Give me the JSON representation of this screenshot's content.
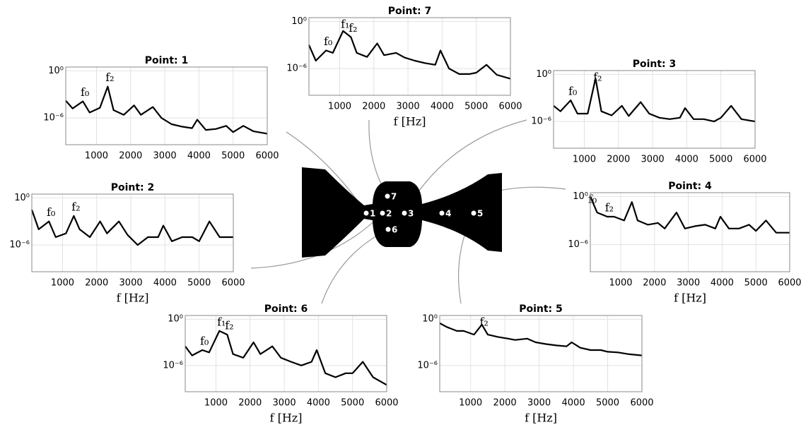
{
  "chart_data": [
    {
      "type": "line",
      "title": "Point: 1",
      "log_y": true,
      "grid": true,
      "color": "#000000",
      "x": [
        100,
        300,
        600,
        800,
        1100,
        1330,
        1500,
        1800,
        2100,
        2300,
        2650,
        2900,
        3200,
        3500,
        3800,
        3950,
        4200,
        4500,
        4800,
        5000,
        5300,
        5600,
        6000
      ],
      "values": [
        0.00016,
        1.6e-05,
        0.00013,
        5e-06,
        2e-05,
        0.01,
        1e-05,
        2.5e-06,
        4e-05,
        2.5e-06,
        2.5e-05,
        1e-06,
        1.6e-07,
        8e-08,
        5e-08,
        6e-07,
        3e-08,
        4e-08,
        1e-07,
        1.6e-08,
        1e-07,
        2e-08,
        1e-08
      ],
      "xlim": [
        100,
        6000
      ],
      "xticks": [
        1000,
        2000,
        3000,
        4000,
        5000,
        6000
      ],
      "ylim": [
        4e-10,
        3
      ],
      "yticks": [
        {
          "value": 1,
          "label": "10⁰"
        },
        {
          "value": 1e-06,
          "label": "10⁻⁶"
        }
      ],
      "annotations": [
        {
          "text": "f₀",
          "x": 600
        },
        {
          "text": "f₂",
          "x": 1330
        }
      ]
    },
    {
      "type": "line",
      "title": "Point: 7",
      "log_y": true,
      "grid": true,
      "color": "#000000",
      "xlabel": "f [Hz]",
      "x": [
        100,
        300,
        600,
        800,
        1100,
        1330,
        1500,
        1800,
        2100,
        2300,
        2650,
        2900,
        3200,
        3500,
        3800,
        3950,
        4200,
        4500,
        4800,
        5000,
        5300,
        5600,
        6000
      ],
      "values": [
        0.001,
        1e-05,
        0.0002,
        0.0001,
        0.06,
        0.01,
        0.0001,
        3e-05,
        0.0016,
        5e-05,
        0.0001,
        2.5e-05,
        1e-05,
        5e-06,
        3e-06,
        0.0002,
        1e-06,
        2e-07,
        2e-07,
        3e-07,
        3e-06,
        1.6e-07,
        5e-08
      ],
      "xlim": [
        100,
        6000
      ],
      "xticks": [
        1000,
        2000,
        3000,
        4000,
        5000,
        6000
      ],
      "ylim": [
        4e-10,
        3
      ],
      "yticks": [
        {
          "value": 1,
          "label": "10⁰"
        },
        {
          "value": 1e-06,
          "label": "10⁻⁶"
        }
      ],
      "annotations": [
        {
          "text": "f₀",
          "x": 600
        },
        {
          "text": "f₁",
          "x": 1100
        },
        {
          "text": "f₂",
          "x": 1330
        }
      ]
    },
    {
      "type": "line",
      "title": "Point: 3",
      "log_y": true,
      "grid": true,
      "color": "#000000",
      "x": [
        100,
        300,
        600,
        800,
        1100,
        1330,
        1500,
        1800,
        2100,
        2300,
        2650,
        2900,
        3200,
        3500,
        3800,
        3950,
        4200,
        4500,
        4800,
        5000,
        5300,
        5600,
        6000
      ],
      "values": [
        0.0001,
        2e-05,
        0.0005,
        1e-05,
        1e-05,
        0.3,
        2e-05,
        6e-06,
        0.0001,
        5e-06,
        0.0003,
        1e-05,
        3e-06,
        2e-06,
        3e-06,
        5e-05,
        2e-06,
        2e-06,
        1e-06,
        3e-06,
        0.0001,
        2e-06,
        1e-06
      ],
      "xlim": [
        100,
        6000
      ],
      "xticks": [
        1000,
        2000,
        3000,
        4000,
        5000,
        6000
      ],
      "ylim": [
        4e-10,
        3
      ],
      "yticks": [
        {
          "value": 1,
          "label": "10⁰"
        },
        {
          "value": 1e-06,
          "label": "10⁻⁶"
        }
      ],
      "annotations": [
        {
          "text": "f₀",
          "x": 600
        },
        {
          "text": "f₂",
          "x": 1330
        }
      ]
    },
    {
      "type": "line",
      "title": "Point: 2",
      "log_y": true,
      "grid": true,
      "color": "#000000",
      "xlabel": "f [Hz]",
      "x": [
        100,
        300,
        600,
        800,
        1100,
        1330,
        1500,
        1800,
        2100,
        2300,
        2650,
        2900,
        3200,
        3500,
        3800,
        3950,
        4200,
        4500,
        4800,
        5000,
        5300,
        5600,
        6000
      ],
      "values": [
        0.03,
        0.0001,
        0.001,
        1e-05,
        3e-05,
        0.005,
        0.0001,
        1e-05,
        0.001,
        3e-05,
        0.001,
        2e-05,
        1e-06,
        1e-05,
        1e-05,
        0.0003,
        3e-06,
        1e-05,
        1e-05,
        3e-06,
        0.001,
        1e-05,
        1e-05
      ],
      "xlim": [
        100,
        6000
      ],
      "xticks": [
        1000,
        2000,
        3000,
        4000,
        5000,
        6000
      ],
      "ylim": [
        4e-10,
        3
      ],
      "yticks": [
        {
          "value": 1,
          "label": "10⁰"
        },
        {
          "value": 1e-06,
          "label": "10⁻⁶"
        }
      ],
      "annotations": [
        {
          "text": "f₀",
          "x": 600
        },
        {
          "text": "f₂",
          "x": 1330
        }
      ]
    },
    {
      "type": "line",
      "title": "Point: 4",
      "log_y": true,
      "grid": true,
      "color": "#000000",
      "xlabel": "f [Hz]",
      "x": [
        100,
        300,
        600,
        800,
        1100,
        1330,
        1500,
        1800,
        2100,
        2300,
        2650,
        2900,
        3200,
        3500,
        3800,
        3950,
        4200,
        4500,
        4800,
        5000,
        5300,
        5600,
        6000
      ],
      "values": [
        1,
        0.01,
        0.003,
        0.003,
        0.001,
        0.2,
        0.001,
        0.0003,
        0.0005,
        0.0001,
        0.01,
        0.0001,
        0.0002,
        0.0003,
        0.0001,
        0.003,
        0.0001,
        0.0001,
        0.0003,
        5e-05,
        0.001,
        3e-05,
        3e-05
      ],
      "xlim": [
        100,
        6000
      ],
      "xticks": [
        1000,
        2000,
        3000,
        4000,
        5000,
        6000
      ],
      "ylim": [
        4e-10,
        3
      ],
      "yticks": [
        {
          "value": 1,
          "label": "10⁰"
        },
        {
          "value": 1e-06,
          "label": "10⁻⁶"
        }
      ],
      "annotations": [
        {
          "text": "f₀",
          "x": 100
        },
        {
          "text": "f₂",
          "x": 600
        }
      ]
    },
    {
      "type": "line",
      "title": "Point: 6",
      "log_y": true,
      "grid": true,
      "color": "#000000",
      "xlabel": "f [Hz]",
      "x": [
        100,
        300,
        600,
        800,
        1100,
        1330,
        1500,
        1800,
        2100,
        2300,
        2650,
        2900,
        3200,
        3500,
        3800,
        3950,
        4200,
        4500,
        4800,
        5000,
        5300,
        5600,
        6000
      ],
      "values": [
        0.0003,
        2e-05,
        0.0001,
        5e-05,
        0.03,
        0.01,
        3e-05,
        1e-05,
        0.001,
        3e-05,
        0.0003,
        1e-05,
        3e-06,
        1e-06,
        3e-06,
        0.0001,
        1e-07,
        3e-08,
        1e-07,
        1e-07,
        3e-06,
        3e-08,
        3e-09
      ],
      "xlim": [
        100,
        6000
      ],
      "xticks": [
        1000,
        2000,
        3000,
        4000,
        5000,
        6000
      ],
      "ylim": [
        4e-10,
        3
      ],
      "yticks": [
        {
          "value": 1,
          "label": "10⁰"
        },
        {
          "value": 1e-06,
          "label": "10⁻⁶"
        }
      ],
      "annotations": [
        {
          "text": "f₀",
          "x": 600
        },
        {
          "text": "f₁",
          "x": 1100
        },
        {
          "text": "f₂",
          "x": 1330
        }
      ]
    },
    {
      "type": "line",
      "title": "Point: 5",
      "log_y": true,
      "grid": true,
      "color": "#000000",
      "xlabel": "f [Hz]",
      "x": [
        100,
        300,
        600,
        800,
        1100,
        1330,
        1500,
        1800,
        2100,
        2300,
        2650,
        2900,
        3200,
        3500,
        3800,
        3950,
        4200,
        4500,
        4800,
        5000,
        5300,
        5600,
        6000
      ],
      "values": [
        0.3,
        0.1,
        0.03,
        0.03,
        0.01,
        0.2,
        0.01,
        0.005,
        0.003,
        0.002,
        0.003,
        0.001,
        0.0006,
        0.0004,
        0.0003,
        0.001,
        0.0002,
        0.0001,
        0.0001,
        6e-05,
        5e-05,
        3e-05,
        2e-05
      ],
      "xlim": [
        100,
        6000
      ],
      "xticks": [
        1000,
        2000,
        3000,
        4000,
        5000,
        6000
      ],
      "ylim": [
        4e-10,
        3
      ],
      "yticks": [
        {
          "value": 1,
          "label": "10⁰"
        },
        {
          "value": 1e-06,
          "label": "10⁻⁶"
        }
      ],
      "annotations": [
        {
          "text": "f₂",
          "x": 1330
        }
      ]
    }
  ],
  "diagram": {
    "points": [
      "1",
      "2",
      "3",
      "4",
      "5",
      "6",
      "7"
    ]
  }
}
